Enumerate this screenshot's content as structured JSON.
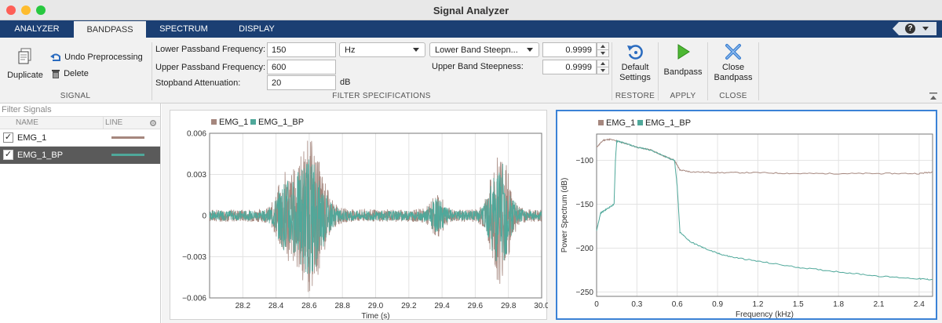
{
  "window": {
    "title": "Signal Analyzer"
  },
  "tabs": [
    {
      "label": "ANALYZER"
    },
    {
      "label": "BANDPASS"
    },
    {
      "label": "SPECTRUM"
    },
    {
      "label": "DISPLAY"
    }
  ],
  "help": {
    "label": "?"
  },
  "signal_section": {
    "duplicate": "Duplicate",
    "undo": "Undo Preprocessing",
    "delete": "Delete",
    "label": "SIGNAL"
  },
  "filter": {
    "lower_passband_label": "Lower Passband Frequency:",
    "lower_passband_value": "150",
    "units": "Hz",
    "steepness_option": "Lower Band Steepn...",
    "lower_steepness_value": "0.9999",
    "upper_passband_label": "Upper Passband Frequency:",
    "upper_passband_value": "600",
    "upper_steepness_label": "Upper Band Steepness:",
    "upper_steepness_value": "0.9999",
    "stopband_label": "Stopband Attenuation:",
    "stopband_value": "20",
    "stopband_units": "dB",
    "label": "FILTER SPECIFICATIONS"
  },
  "restore": {
    "button": "Default Settings",
    "label": "RESTORE"
  },
  "apply": {
    "button": "Bandpass",
    "label": "APPLY"
  },
  "close": {
    "button": "Close Bandpass",
    "label": "CLOSE"
  },
  "signals_panel": {
    "filter_placeholder": "Filter Signals",
    "col_name": "NAME",
    "col_line": "LINE",
    "rows": [
      {
        "name": "EMG_1",
        "checked": "✓",
        "color": "#a5877e",
        "selected": false
      },
      {
        "name": "EMG_1_BP",
        "checked": "✓",
        "color": "#4fa89a",
        "selected": true
      }
    ]
  },
  "colors": {
    "emg1": "#a5877e",
    "emg1bp": "#4fa89a",
    "accent": "#1b3f73",
    "focus": "#3b82d6"
  },
  "chart_data": [
    {
      "type": "line",
      "title": "",
      "legend": [
        "EMG_1",
        "EMG_1_BP"
      ],
      "legend_position": "top-left",
      "xlabel": "Time (s)",
      "ylabel": "",
      "xlim": [
        28.0,
        30.0
      ],
      "ylim": [
        -0.006,
        0.006
      ],
      "xticks": [
        28.2,
        28.4,
        28.6,
        28.8,
        29.0,
        29.2,
        29.4,
        29.6,
        29.8,
        30.0
      ],
      "xtick_labels": [
        "28.2",
        "28.4",
        "28.6",
        "28.8",
        "29.0",
        "29.2",
        "29.4",
        "29.6",
        "29.8",
        "30.0"
      ],
      "yticks": [
        -0.006,
        -0.003,
        0,
        0.003,
        0.006
      ],
      "ytick_labels": [
        "−0.006",
        "−0.003",
        "0",
        "0.003",
        "0.006"
      ],
      "bursts": [
        {
          "center": 28.6,
          "width": 0.1,
          "amplitude": 0.0045
        },
        {
          "center": 28.45,
          "width": 0.06,
          "amplitude": 0.002
        },
        {
          "center": 29.75,
          "width": 0.07,
          "amplitude": 0.004
        },
        {
          "center": 29.37,
          "width": 0.05,
          "amplitude": 0.001
        }
      ],
      "baseline_noise": 0.0004,
      "grid": true
    },
    {
      "type": "line",
      "title": "",
      "legend": [
        "EMG_1",
        "EMG_1_BP"
      ],
      "legend_position": "top-left",
      "xlabel": "Frequency (kHz)",
      "ylabel": "Power Spectrum (dB)",
      "xlim": [
        0,
        2.5
      ],
      "ylim": [
        -255,
        -70
      ],
      "xticks": [
        0,
        0.3,
        0.6,
        0.9,
        1.2,
        1.5,
        1.8,
        2.1,
        2.4
      ],
      "xtick_labels": [
        "0",
        "0.3",
        "0.6",
        "0.9",
        "1.2",
        "1.5",
        "1.8",
        "2.1",
        "2.4"
      ],
      "yticks": [
        -100,
        -150,
        -200,
        -250
      ],
      "ytick_labels": [
        "−100",
        "−150",
        "−200",
        "−250"
      ],
      "series": [
        {
          "name": "EMG_1",
          "x": [
            0,
            0.05,
            0.1,
            0.2,
            0.3,
            0.4,
            0.5,
            0.58,
            0.62,
            0.7,
            0.9,
            1.2,
            1.5,
            1.8,
            2.1,
            2.4,
            2.5
          ],
          "y": [
            -85,
            -77,
            -76,
            -80,
            -85,
            -88,
            -95,
            -100,
            -111,
            -113,
            -114,
            -114,
            -115,
            -115,
            -115,
            -115,
            -113
          ]
        },
        {
          "name": "EMG_1_BP",
          "x": [
            0,
            0.03,
            0.08,
            0.13,
            0.14,
            0.15,
            0.2,
            0.3,
            0.4,
            0.5,
            0.58,
            0.6,
            0.62,
            0.7,
            0.8,
            0.9,
            1.0,
            1.2,
            1.5,
            1.8,
            2.1,
            2.4,
            2.5
          ],
          "y": [
            -180,
            -160,
            -155,
            -150,
            -100,
            -78,
            -80,
            -85,
            -88,
            -95,
            -100,
            -130,
            -182,
            -193,
            -200,
            -206,
            -210,
            -215,
            -222,
            -227,
            -232,
            -235,
            -236
          ]
        }
      ],
      "grid": true
    }
  ]
}
